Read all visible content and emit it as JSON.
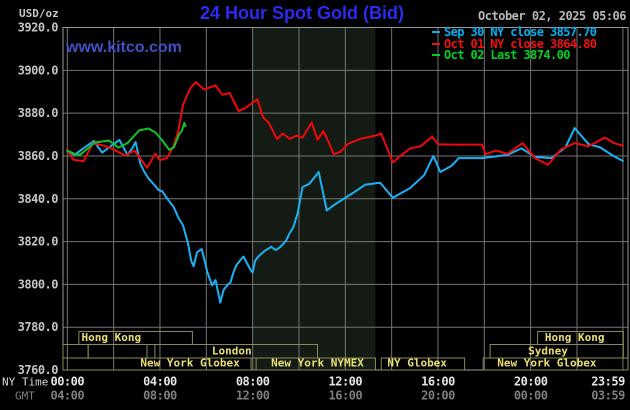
{
  "header": {
    "unit": "USD/oz",
    "title": "24 Hour Spot Gold (Bid)",
    "datetime": "October 02, 2025 05:06",
    "watermark": "www.kitco.com"
  },
  "legend": {
    "items": [
      {
        "label": "Sep 30 NY close 3857.70",
        "color": "#00b0f0"
      },
      {
        "label": "Oct 01 NY close 3864.80",
        "color": "#f01010"
      },
      {
        "label": "Oct 02 Last 3874.00",
        "color": "#00d020"
      }
    ]
  },
  "colors": {
    "background": "#000000",
    "grid": "#757575",
    "plot_border": "#9a9a9a",
    "session_band": "#141b14",
    "session_box_outline": "#8a8a50",
    "session_label": "#e8e070",
    "y_tick_label": "#c4c4c4",
    "ny_time_label": "#e4e4e4",
    "gmt_label": "#7e7e7e",
    "title_blue": "#2b2bf2",
    "watermark_blue": "#3f51c4"
  },
  "chart_data": {
    "type": "line",
    "title": "24 Hour Spot Gold (Bid)",
    "ylabel": "USD/oz",
    "ylim": [
      3760,
      3920
    ],
    "xlim_hours": [
      0,
      23.983
    ],
    "grid": {
      "x_step_hours": 2,
      "y_step": 20,
      "grid_on": true
    },
    "legend_position": "top-right",
    "timezone_rows": {
      "primary": "NY Time",
      "secondary": "GMT"
    },
    "y_ticks": [
      {
        "label": "3920.0",
        "value": 3920
      },
      {
        "label": "3900.0",
        "value": 3900
      },
      {
        "label": "3880.0",
        "value": 3880
      },
      {
        "label": "3860.0",
        "value": 3860
      },
      {
        "label": "3840.0",
        "value": 3840
      },
      {
        "label": "3820.0",
        "value": 3820
      },
      {
        "label": "3800.0",
        "value": 3800
      },
      {
        "label": "3780.0",
        "value": 3780
      },
      {
        "label": "3760.0",
        "value": 3760
      }
    ],
    "x_ticks": [
      {
        "ny": "00:00",
        "gmt": "04:00",
        "hour": 0
      },
      {
        "ny": "04:00",
        "gmt": "08:00",
        "hour": 4
      },
      {
        "ny": "08:00",
        "gmt": "12:00",
        "hour": 8
      },
      {
        "ny": "12:00",
        "gmt": "16:00",
        "hour": 12
      },
      {
        "ny": "16:00",
        "gmt": "20:00",
        "hour": 16
      },
      {
        "ny": "20:00",
        "gmt": "00:00",
        "hour": 20
      },
      {
        "ny": "23:59",
        "gmt": "03:59",
        "hour": 23.983,
        "label_x": 608
      }
    ],
    "nymex_floor_band_hours": [
      8.0,
      13.3
    ],
    "series": [
      {
        "name": "Sep 30 NY close",
        "close": 3857.7,
        "color": "#1ab2f5",
        "points": [
          [
            0,
            3862.5
          ],
          [
            0.3,
            3860.5
          ],
          [
            0.75,
            3864
          ],
          [
            1.15,
            3867
          ],
          [
            1.5,
            3861.5
          ],
          [
            1.8,
            3864
          ],
          [
            2.25,
            3867.5
          ],
          [
            2.6,
            3860.5
          ],
          [
            2.8,
            3863.5
          ],
          [
            2.95,
            3866.5
          ],
          [
            3.15,
            3856.5
          ],
          [
            3.3,
            3853
          ],
          [
            3.5,
            3849.5
          ],
          [
            3.75,
            3846.5
          ],
          [
            3.95,
            3844
          ],
          [
            4.1,
            3843.5
          ],
          [
            4.35,
            3839.5
          ],
          [
            4.6,
            3836
          ],
          [
            4.8,
            3831
          ],
          [
            5,
            3827.5
          ],
          [
            5.2,
            3819.5
          ],
          [
            5.35,
            3811
          ],
          [
            5.45,
            3808.5
          ],
          [
            5.6,
            3815
          ],
          [
            5.8,
            3816.5
          ],
          [
            6.05,
            3805.5
          ],
          [
            6.25,
            3799.5
          ],
          [
            6.4,
            3802
          ],
          [
            6.6,
            3791.5
          ],
          [
            6.75,
            3797.5
          ],
          [
            6.9,
            3799.5
          ],
          [
            7.05,
            3801
          ],
          [
            7.15,
            3805
          ],
          [
            7.3,
            3809
          ],
          [
            7.45,
            3811
          ],
          [
            7.6,
            3813
          ],
          [
            7.9,
            3807
          ],
          [
            8,
            3805.5
          ],
          [
            8.1,
            3811
          ],
          [
            8.25,
            3813
          ],
          [
            8.5,
            3815.5
          ],
          [
            8.8,
            3817.5
          ],
          [
            9,
            3816
          ],
          [
            9.2,
            3817.5
          ],
          [
            9.45,
            3820.5
          ],
          [
            9.6,
            3824
          ],
          [
            9.75,
            3826.5
          ],
          [
            9.95,
            3833.5
          ],
          [
            10.15,
            3845.5
          ],
          [
            10.45,
            3847
          ],
          [
            10.85,
            3852.5
          ],
          [
            11.2,
            3834.5
          ],
          [
            11.5,
            3837
          ],
          [
            12.3,
            3842.5
          ],
          [
            12.85,
            3846.5
          ],
          [
            13.5,
            3847.5
          ],
          [
            14.05,
            3840.5
          ],
          [
            14.8,
            3845
          ],
          [
            15.4,
            3851
          ],
          [
            15.8,
            3860
          ],
          [
            16.1,
            3852.5
          ],
          [
            16.6,
            3855.5
          ],
          [
            16.9,
            3859
          ],
          [
            17.9,
            3859
          ],
          [
            19,
            3860.5
          ],
          [
            19.6,
            3863.5
          ],
          [
            20.2,
            3859.5
          ],
          [
            20.9,
            3859
          ],
          [
            21.5,
            3864
          ],
          [
            21.9,
            3873
          ],
          [
            22.5,
            3865.5
          ],
          [
            23,
            3864
          ],
          [
            23.5,
            3860.5
          ],
          [
            23.75,
            3859
          ],
          [
            23.983,
            3857.7
          ]
        ]
      },
      {
        "name": "Oct 01 NY close",
        "close": 3864.8,
        "color": "#ee0808",
        "points": [
          [
            0,
            3863
          ],
          [
            0.25,
            3858.3
          ],
          [
            0.7,
            3857.5
          ],
          [
            1.1,
            3866
          ],
          [
            1.5,
            3865
          ],
          [
            1.85,
            3863.8
          ],
          [
            2.5,
            3860.2
          ],
          [
            2.9,
            3862.5
          ],
          [
            3.3,
            3856.5
          ],
          [
            3.45,
            3854.5
          ],
          [
            3.8,
            3861
          ],
          [
            4,
            3858
          ],
          [
            4.3,
            3859
          ],
          [
            4.6,
            3865
          ],
          [
            4.8,
            3872
          ],
          [
            5,
            3884
          ],
          [
            5.3,
            3891.5
          ],
          [
            5.55,
            3894.5
          ],
          [
            5.9,
            3891
          ],
          [
            6.15,
            3892
          ],
          [
            6.4,
            3893
          ],
          [
            6.7,
            3888.5
          ],
          [
            7,
            3889.5
          ],
          [
            7.4,
            3881
          ],
          [
            7.7,
            3882.5
          ],
          [
            7.95,
            3884.5
          ],
          [
            8.2,
            3886.5
          ],
          [
            8.45,
            3878
          ],
          [
            8.7,
            3875.5
          ],
          [
            9.05,
            3867.8
          ],
          [
            9.3,
            3870.5
          ],
          [
            9.6,
            3868
          ],
          [
            9.9,
            3869.5
          ],
          [
            10.15,
            3868.5
          ],
          [
            10.55,
            3875.6
          ],
          [
            10.8,
            3867.5
          ],
          [
            11.05,
            3871.6
          ],
          [
            11.3,
            3866
          ],
          [
            11.5,
            3860.8
          ],
          [
            11.8,
            3862
          ],
          [
            12.1,
            3865.6
          ],
          [
            12.65,
            3868
          ],
          [
            13.3,
            3869.5
          ],
          [
            13.55,
            3870.5
          ],
          [
            14.05,
            3857
          ],
          [
            14.5,
            3861
          ],
          [
            14.8,
            3863.5
          ],
          [
            15.25,
            3864.5
          ],
          [
            15.75,
            3869
          ],
          [
            16,
            3865.5
          ],
          [
            16.6,
            3865.3
          ],
          [
            17.9,
            3865.3
          ],
          [
            18.05,
            3860.8
          ],
          [
            18.5,
            3862.5
          ],
          [
            19,
            3861
          ],
          [
            19.65,
            3866
          ],
          [
            20.2,
            3858.9
          ],
          [
            20.75,
            3855.8
          ],
          [
            21.3,
            3863
          ],
          [
            21.9,
            3866
          ],
          [
            22.5,
            3864.5
          ],
          [
            23.2,
            3868.6
          ],
          [
            23.6,
            3866
          ],
          [
            23.983,
            3864.8
          ]
        ]
      },
      {
        "name": "Oct 02 Last",
        "close": 3874.0,
        "color": "#0fc425",
        "points": [
          [
            0,
            3862.5
          ],
          [
            0.3,
            3861
          ],
          [
            0.55,
            3860.5
          ],
          [
            1.2,
            3866.3
          ],
          [
            1.8,
            3867.2
          ],
          [
            2.2,
            3863.9
          ],
          [
            2.6,
            3866
          ],
          [
            3.1,
            3871.9
          ],
          [
            3.5,
            3872.8
          ],
          [
            3.8,
            3871
          ],
          [
            4.1,
            3867.2
          ],
          [
            4.4,
            3862.8
          ],
          [
            4.6,
            3864
          ],
          [
            4.8,
            3869.5
          ],
          [
            4.95,
            3872
          ],
          [
            5.05,
            3875.5
          ],
          [
            5.1,
            3874
          ]
        ]
      }
    ],
    "sessions": [
      {
        "row": 1,
        "label": "Hong Kong",
        "start_hour": 0.5,
        "end_hour": 5.4,
        "label_center_hour": 1.9
      },
      {
        "row": 1,
        "label": "Hong Kong",
        "start_hour": 20.3,
        "end_hour": 24,
        "label_center_hour": 21.9
      },
      {
        "row": 2,
        "label": "",
        "start_hour": -0.19,
        "end_hour": 0.9
      },
      {
        "row": 2,
        "label": "",
        "start_hour": 0.9,
        "end_hour": 3.44
      },
      {
        "row": 2,
        "label": "London",
        "start_hour": 3.78,
        "end_hour": 10.8,
        "label_center_hour": 7.1
      },
      {
        "row": 2,
        "label": "Sydney",
        "start_hour": 18.25,
        "end_hour": 24,
        "label_center_hour": 20.75
      },
      {
        "row": 3,
        "label": "New York Globex",
        "start_hour": -0.19,
        "end_hour": 7.93,
        "label_center_hour": 5.3
      },
      {
        "row": 3,
        "label": "New York NYMEX",
        "start_hour": 8.15,
        "end_hour": 13.3,
        "label_center_hour": 10.8
      },
      {
        "row": 3,
        "label": "NY Globex",
        "start_hour": 13.55,
        "end_hour": 17.15,
        "label_center_hour": 15.1
      },
      {
        "row": 3,
        "label": "New York Globex",
        "start_hour": 17.95,
        "end_hour": 24.2,
        "label_center_hour": 20.7
      }
    ]
  }
}
